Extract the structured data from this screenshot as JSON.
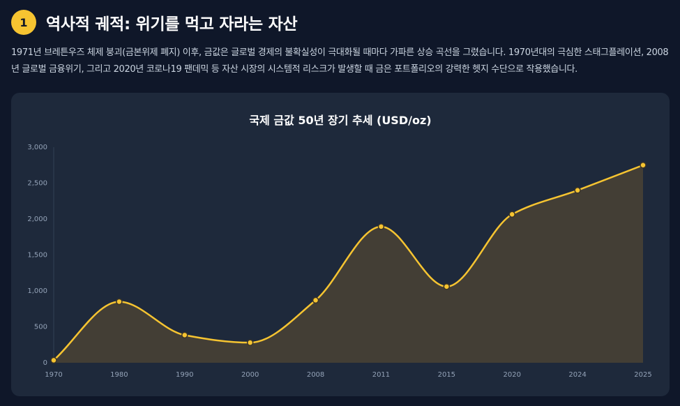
{
  "header": {
    "number": "1",
    "title": "역사적 궤적: 위기를 먹고 자라는 자산",
    "description": "1971년 브레튼우즈 체제 붕괴(금본위제 폐지) 이후, 금값은 글로벌 경제의 불확실성이 극대화될 때마다 가파른 상승 곡선을 그렸습니다. 1970년대의 극심한 스태그플레이션, 2008년 글로벌 금융위기, 그리고 2020년 코로나19 팬데믹 등 자산 시장의 시스템적 리스크가 발생할 때 금은 포트폴리오의 강력한 헷지 수단으로 작용했습니다."
  },
  "colors": {
    "accent": "#f6c431",
    "background": "#0f1729",
    "card": "#1e293b",
    "area_fill": "#433e35"
  },
  "chart_data": {
    "type": "area",
    "title": "국제 금값 50년 장기 추세 (USD/oz)",
    "categories": [
      "1970",
      "1980",
      "1990",
      "2000",
      "2008",
      "2011",
      "2015",
      "2020",
      "2024",
      "2025"
    ],
    "series": [
      {
        "values": [
          35,
          850,
          385,
          280,
          870,
          1895,
          1060,
          2065,
          2400,
          2750
        ]
      }
    ],
    "ylim": [
      0,
      3000
    ],
    "yticks": [
      "0",
      "500",
      "1,000",
      "1,500",
      "2,000",
      "2,500",
      "3,000"
    ],
    "grid": false,
    "legend": "none"
  }
}
